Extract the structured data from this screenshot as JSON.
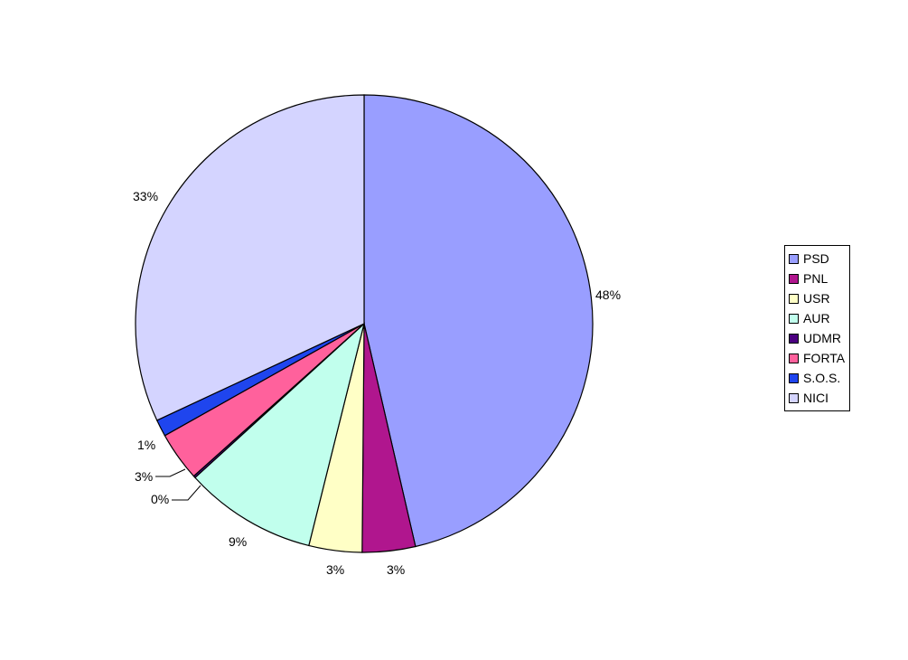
{
  "chart_data": {
    "type": "pie",
    "title": "",
    "legend_position": "right",
    "slices": [
      {
        "name": "PSD",
        "value": 48,
        "label": "48%",
        "color": "#999eff"
      },
      {
        "name": "PNL",
        "value": 3,
        "label": "3%",
        "color": "#b0168e"
      },
      {
        "name": "USR",
        "value": 3,
        "label": "3%",
        "color": "#ffffc6"
      },
      {
        "name": "AUR",
        "value": 9,
        "label": "9%",
        "color": "#c1ffed"
      },
      {
        "name": "UDMR",
        "value": 0,
        "label": "0%",
        "color": "#4b0080"
      },
      {
        "name": "FORTA",
        "value": 3,
        "label": "3%",
        "color": "#ff619c"
      },
      {
        "name": "S.O.S.",
        "value": 1,
        "label": "1%",
        "color": "#1f45ee"
      },
      {
        "name": "NICI",
        "value": 33,
        "label": "33%",
        "color": "#d4d4ff"
      }
    ]
  }
}
